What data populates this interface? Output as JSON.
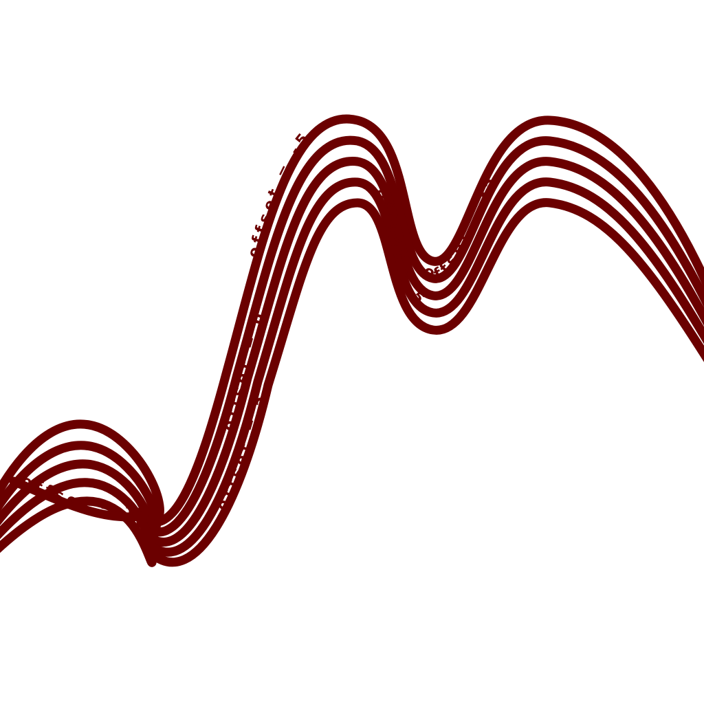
{
  "colors": {
    "stroke": "#6b0000",
    "background": "#ffffff"
  },
  "offset_curves": [
    {
      "label": "offset = -5"
    },
    {
      "label": "offset = -5"
    },
    {
      "label": "offset = 0"
    },
    {
      "label": "offset = 5"
    },
    {
      "label": "offset = 5"
    },
    {
      "label": "offset = 15"
    }
  ]
}
